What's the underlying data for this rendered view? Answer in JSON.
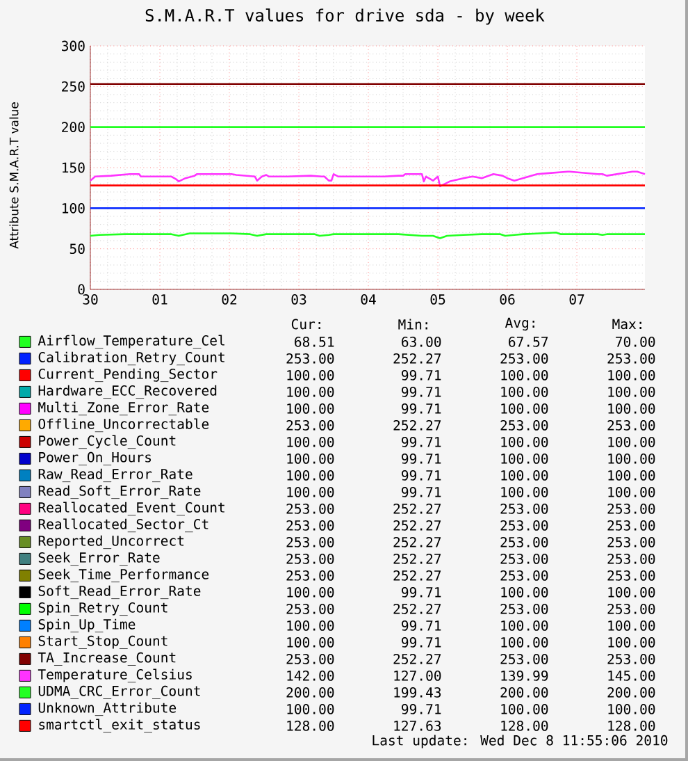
{
  "chart_data": {
    "type": "line",
    "title": "S.M.A.R.T values for drive sda - by week",
    "ylabel": "Attribute S.M.A.R.T value",
    "xlim": [
      "2010-11-30T00:00",
      "2010-12-07T23:30"
    ],
    "ylim": [
      0,
      300
    ],
    "xticks": [
      {
        "value": "2010-11-30",
        "label": "30"
      },
      {
        "value": "2010-12-01",
        "label": "01"
      },
      {
        "value": "2010-12-02",
        "label": "02"
      },
      {
        "value": "2010-12-03",
        "label": "03"
      },
      {
        "value": "2010-12-04",
        "label": "04"
      },
      {
        "value": "2010-12-05",
        "label": "05"
      },
      {
        "value": "2010-12-06",
        "label": "06"
      },
      {
        "value": "2010-12-07",
        "label": "07"
      }
    ],
    "yticks": [
      0,
      50,
      100,
      150,
      200,
      250,
      300
    ],
    "grid": true,
    "legend": "bottom",
    "line_style": "solid",
    "marker": "none",
    "series": [
      {
        "name": "Airflow_Temperature_Cel",
        "color": "#22ff22",
        "x": [
          "2010-11-30T00:00",
          "2010-11-30T03:00",
          "2010-11-30T12:00",
          "2010-12-01T04:00",
          "2010-12-01T06:30",
          "2010-12-01T10:20",
          "2010-12-02T00:45",
          "2010-12-02T07:10",
          "2010-12-02T09:35",
          "2010-12-02T12:45",
          "2010-12-02T20:00",
          "2010-12-03T05:30",
          "2010-12-03T07:10",
          "2010-12-03T10:20",
          "2010-12-03T12:00",
          "2010-12-04T10:20",
          "2010-12-04T18:30",
          "2010-12-04T22:20",
          "2010-12-05T00:45",
          "2010-12-05T03:10",
          "2010-12-05T08:50",
          "2010-12-05T15:10",
          "2010-12-05T21:35",
          "2010-12-05T23:15",
          "2010-12-06T02:25",
          "2010-12-06T05:30",
          "2010-12-06T16:50",
          "2010-12-06T18:30",
          "2010-12-07T07:10",
          "2010-12-07T08:50",
          "2010-12-07T10:20",
          "2010-12-07T23:30"
        ],
        "values": [
          66,
          67,
          68,
          68,
          66,
          69,
          69,
          68,
          66,
          68,
          68,
          68,
          66,
          67,
          68,
          68,
          66,
          66,
          63,
          66,
          67,
          68,
          68,
          66,
          67,
          68,
          70,
          68,
          68,
          67,
          68,
          68
        ]
      },
      {
        "name": "Calibration_Retry_Count",
        "color": "#0022ff",
        "values": [
          null
        ]
      },
      {
        "name": "Current_Pending_Sector",
        "color": "#ff0000",
        "values": [
          null
        ]
      },
      {
        "name": "Hardware_ECC_Recovered",
        "color": "#00aaaa",
        "values": [
          null
        ]
      },
      {
        "name": "Multi_Zone_Error_Rate",
        "color": "#ff00ff",
        "values": [
          null
        ]
      },
      {
        "name": "Offline_Uncorrectable",
        "color": "#ffaa00",
        "values": [
          null
        ]
      },
      {
        "name": "Power_Cycle_Count",
        "color": "#cc0000",
        "values": [
          null
        ]
      },
      {
        "name": "Power_On_Hours",
        "color": "#0000cc",
        "values": [
          null
        ]
      },
      {
        "name": "Raw_Read_Error_Rate",
        "color": "#0080c0",
        "values": [
          null
        ]
      },
      {
        "name": "Read_Soft_Error_Rate",
        "color": "#8080c0",
        "values": [
          null
        ]
      },
      {
        "name": "Reallocated_Event_Count",
        "color": "#ff0080",
        "values": [
          null
        ]
      },
      {
        "name": "Reallocated_Sector_Ct",
        "color": "#800080",
        "values": [
          null
        ]
      },
      {
        "name": "Reported_Uncorrect",
        "color": "#688e23",
        "values": [
          null
        ]
      },
      {
        "name": "Seek_Error_Rate",
        "color": "#408080",
        "values": [
          null
        ]
      },
      {
        "name": "Seek_Time_Performance",
        "color": "#808000",
        "values": [
          null
        ]
      },
      {
        "name": "Soft_Read_Error_Rate",
        "color": "#000000",
        "values": [
          null
        ]
      },
      {
        "name": "Spin_Retry_Count",
        "color": "#00ff00",
        "values": [
          null
        ]
      },
      {
        "name": "Spin_Up_Time",
        "color": "#0080ff",
        "values": [
          null
        ]
      },
      {
        "name": "Start_Stop_Count",
        "color": "#ff8000",
        "values": [
          null
        ]
      },
      {
        "name": "TA_Increase_Count",
        "color": "#800000",
        "x": [
          "2010-11-30T00:00",
          "2010-12-07T23:30"
        ],
        "values": [
          253,
          253
        ]
      },
      {
        "name": "Temperature_Celsius",
        "color": "#ff33ff",
        "x": [
          "2010-11-30T00:00",
          "2010-11-30T01:40",
          "2010-11-30T07:10",
          "2010-11-30T13:40",
          "2010-11-30T16:50",
          "2010-11-30T17:30",
          "2010-12-01T04:00",
          "2010-12-01T05:30",
          "2010-12-01T06:30",
          "2010-12-01T08:50",
          "2010-12-01T12:00",
          "2010-12-01T12:45",
          "2010-12-02T00:45",
          "2010-12-02T02:25",
          "2010-12-02T08:50",
          "2010-12-02T09:35",
          "2010-12-02T11:15",
          "2010-12-02T12:45",
          "2010-12-02T13:40",
          "2010-12-02T20:00",
          "2010-12-03T04:05",
          "2010-12-03T07:55",
          "2010-12-03T08:50",
          "2010-12-03T10:20",
          "2010-12-03T11:15",
          "2010-12-03T12:00",
          "2010-12-03T13:40",
          "2010-12-04T05:30",
          "2010-12-04T10:20",
          "2010-12-04T12:00",
          "2010-12-04T12:45",
          "2010-12-04T18:30",
          "2010-12-04T19:10",
          "2010-12-04T19:55",
          "2010-12-04T22:20",
          "2010-12-05T00:00",
          "2010-12-05T00:45",
          "2010-12-05T04:05",
          "2010-12-05T08:50",
          "2010-12-05T12:00",
          "2010-12-05T15:10",
          "2010-12-05T19:10",
          "2010-12-05T22:20",
          "2010-12-06T00:00",
          "2010-12-06T02:25",
          "2010-12-06T10:20",
          "2010-12-06T13:40",
          "2010-12-06T20:50",
          "2010-12-06T21:35",
          "2010-12-07T07:10",
          "2010-12-07T08:50",
          "2010-12-07T10:20",
          "2010-12-07T19:10",
          "2010-12-07T20:50",
          "2010-12-07T23:30"
        ],
        "values": [
          134,
          139,
          140,
          142,
          142,
          139,
          139,
          136,
          133,
          137,
          140,
          142,
          142,
          141,
          139,
          134,
          139,
          141,
          139,
          139,
          140,
          139,
          139,
          134,
          134,
          142,
          139,
          139,
          140,
          140,
          142,
          142,
          133,
          139,
          134,
          139,
          127,
          133,
          137,
          139,
          137,
          142,
          140,
          137,
          134,
          142,
          143,
          145,
          145,
          142,
          142,
          140,
          145,
          145,
          142
        ]
      },
      {
        "name": "UDMA_CRC_Error_Count",
        "color": "#22ff22",
        "x": [
          "2010-11-30T00:00",
          "2010-12-07T23:30"
        ],
        "values": [
          200,
          200
        ]
      },
      {
        "name": "Unknown_Attribute",
        "color": "#0022ff",
        "x": [
          "2010-11-30T00:00",
          "2010-12-07T23:30"
        ],
        "values": [
          100,
          100
        ]
      },
      {
        "name": "smartctl_exit_status",
        "color": "#ff0000",
        "x": [
          "2010-11-30T00:00",
          "2010-12-07T23:30"
        ],
        "values": [
          128,
          128
        ]
      }
    ],
    "annotations": [
      "Cur:",
      "Min:",
      "Avg:",
      "Max:",
      "68.51",
      "63.00",
      "67.57",
      "70.00",
      "253.00",
      "252.27",
      "253.00",
      "253.00",
      "100.00",
      "99.71",
      "100.00",
      "100.00",
      "100.00",
      "99.71",
      "100.00",
      "100.00",
      "100.00",
      "99.71",
      "100.00",
      "100.00",
      "253.00",
      "252.27",
      "253.00",
      "253.00",
      "100.00",
      "99.71",
      "100.00",
      "100.00",
      "100.00",
      "99.71",
      "100.00",
      "100.00",
      "100.00",
      "99.71",
      "100.00",
      "100.00",
      "100.00",
      "99.71",
      "100.00",
      "100.00",
      "253.00",
      "252.27",
      "253.00",
      "253.00",
      "253.00",
      "252.27",
      "253.00",
      "253.00",
      "253.00",
      "252.27",
      "253.00",
      "253.00",
      "253.00",
      "252.27",
      "253.00",
      "253.00",
      "253.00",
      "252.27",
      "253.00",
      "253.00",
      "100.00",
      "99.71",
      "100.00",
      "100.00",
      "253.00",
      "252.27",
      "253.00",
      "253.00",
      "100.00",
      "99.71",
      "100.00",
      "100.00",
      "100.00",
      "99.71",
      "100.00",
      "100.00",
      "253.00",
      "252.27",
      "253.00",
      "253.00",
      "142.00",
      "127.00",
      "139.99",
      "145.00",
      "200.00",
      "199.43",
      "200.00",
      "200.00",
      "100.00",
      "99.71",
      "100.00",
      "100.00",
      "128.00",
      "127.63",
      "128.00",
      "128.00",
      "Last update: Wed Dec 8 11:55:06 2010"
    ]
  }
}
